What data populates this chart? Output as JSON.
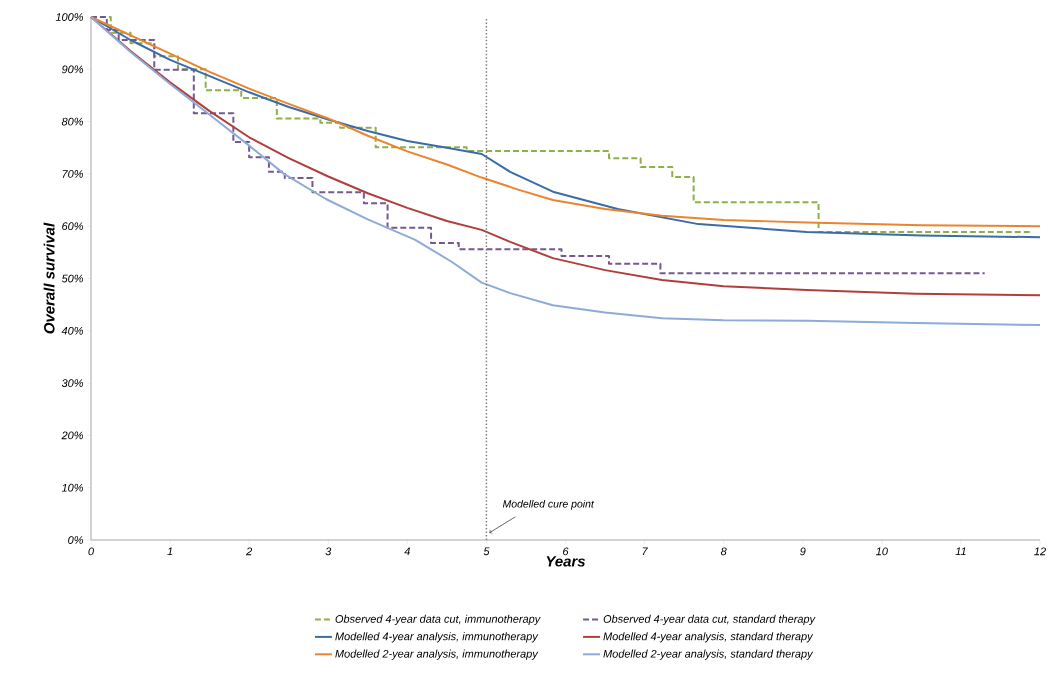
{
  "chart_data": {
    "type": "line",
    "xlabel": "Years",
    "ylabel": "Overall survival",
    "xlim": [
      0,
      12
    ],
    "ylim": [
      0,
      100
    ],
    "xticks": [
      0,
      1,
      2,
      3,
      4,
      5,
      6,
      7,
      8,
      9,
      10,
      11,
      12
    ],
    "yticks": [
      {
        "value": 0,
        "label": "0%"
      },
      {
        "value": 10,
        "label": "10%"
      },
      {
        "value": 20,
        "label": "20%"
      },
      {
        "value": 30,
        "label": "30%"
      },
      {
        "value": 40,
        "label": "40%"
      },
      {
        "value": 50,
        "label": "50%"
      },
      {
        "value": 60,
        "label": "60%"
      },
      {
        "value": 70,
        "label": "70%"
      },
      {
        "value": 80,
        "label": "80%"
      },
      {
        "value": 90,
        "label": "90%"
      },
      {
        "value": 100,
        "label": "100%"
      }
    ],
    "legend": "bottom",
    "ref_lines": [
      {
        "axis": "x",
        "value": 5,
        "color": "#808080",
        "line_style": "dotted"
      }
    ],
    "annotations": [
      {
        "text": "Modelled cure point",
        "x": 5,
        "y": 1
      }
    ],
    "series": [
      {
        "name": "Observed 4-year data cut, immunotherapy",
        "type": "step",
        "line_style": "dashed",
        "color": "#8db04a",
        "x": [
          0,
          0.25,
          0.5,
          0.8,
          1.1,
          1.45,
          1.9,
          2.35,
          2.9,
          3.15,
          3.6,
          4.75,
          6.55,
          6.95,
          7.35,
          7.62,
          9.2,
          11.9
        ],
        "values": [
          100,
          97,
          95,
          92.5,
          90,
          86,
          84.5,
          80.6,
          79.8,
          78.8,
          75.1,
          74.4,
          73,
          71.3,
          69.4,
          64.6,
          58.9,
          58.9
        ]
      },
      {
        "name": "Observed 4-year data cut, standard therapy",
        "type": "step",
        "line_style": "dashed",
        "color": "#74588f",
        "x": [
          0,
          0.2,
          0.35,
          0.8,
          1.3,
          1.8,
          2.0,
          2.25,
          2.45,
          2.8,
          3.45,
          3.75,
          4.3,
          4.65,
          5.95,
          6.55,
          7.2,
          11.3
        ],
        "values": [
          100,
          97.5,
          95.6,
          89.9,
          81.6,
          76.1,
          73.2,
          70.4,
          69.2,
          66.5,
          64.4,
          59.7,
          56.8,
          55.6,
          54.3,
          52.8,
          51,
          51
        ]
      },
      {
        "name": "Modelled 4-year analysis, immunotherapy",
        "line_style": "solid",
        "color": "#3b6ba8",
        "x": [
          0,
          0.5,
          1,
          1.5,
          2,
          2.5,
          3,
          3.5,
          4,
          4.5,
          4.94,
          5.3,
          5.84,
          6.66,
          7.68,
          9.05,
          10.5,
          12
        ],
        "values": [
          100,
          95.6,
          91.8,
          88.7,
          85.6,
          82.8,
          80.4,
          78.2,
          76.3,
          75,
          73.8,
          70.4,
          66.6,
          63.3,
          60.4,
          58.9,
          58.2,
          57.9
        ]
      },
      {
        "name": "Modelled 4-year analysis, standard therapy",
        "line_style": "solid",
        "color": "#b03f3b",
        "x": [
          0,
          0.5,
          1,
          1.5,
          2,
          2.5,
          3,
          3.5,
          4,
          4.5,
          4.94,
          5.3,
          5.84,
          6.5,
          7.22,
          8,
          9.05,
          10.43,
          12
        ],
        "values": [
          100,
          93.5,
          87.5,
          82,
          77,
          73,
          69.5,
          66.3,
          63.5,
          61,
          59.3,
          57,
          53.9,
          51.6,
          49.7,
          48.5,
          47.8,
          47.1,
          46.8
        ]
      },
      {
        "name": "Modelled 2-year analysis, immunotherapy",
        "line_style": "solid",
        "color": "#e8852e",
        "x": [
          0,
          0.5,
          1,
          1.5,
          2,
          2.5,
          3,
          3.5,
          4,
          4.5,
          4.94,
          5.4,
          5.84,
          6.5,
          7.22,
          8,
          9.05,
          10.5,
          12
        ],
        "values": [
          100,
          96.5,
          93,
          89.5,
          86.3,
          83.4,
          80.6,
          77.3,
          74.3,
          71.8,
          69.3,
          67,
          65,
          63.3,
          62,
          61.2,
          60.7,
          60.2,
          60
        ]
      },
      {
        "name": "Modelled 2-year analysis, standard therapy",
        "line_style": "solid",
        "color": "#8eaad8",
        "x": [
          0,
          0.5,
          1,
          1.5,
          2,
          2.44,
          2.97,
          3.5,
          4.1,
          4.56,
          4.94,
          5.3,
          5.84,
          6.5,
          7.22,
          8,
          9.05,
          10.43,
          12
        ],
        "values": [
          100,
          93.3,
          87.2,
          81.3,
          75.4,
          70,
          65.2,
          61.3,
          57.4,
          53.2,
          49.2,
          47.2,
          44.9,
          43.5,
          42.4,
          42,
          41.9,
          41.5,
          41.1
        ]
      }
    ]
  }
}
